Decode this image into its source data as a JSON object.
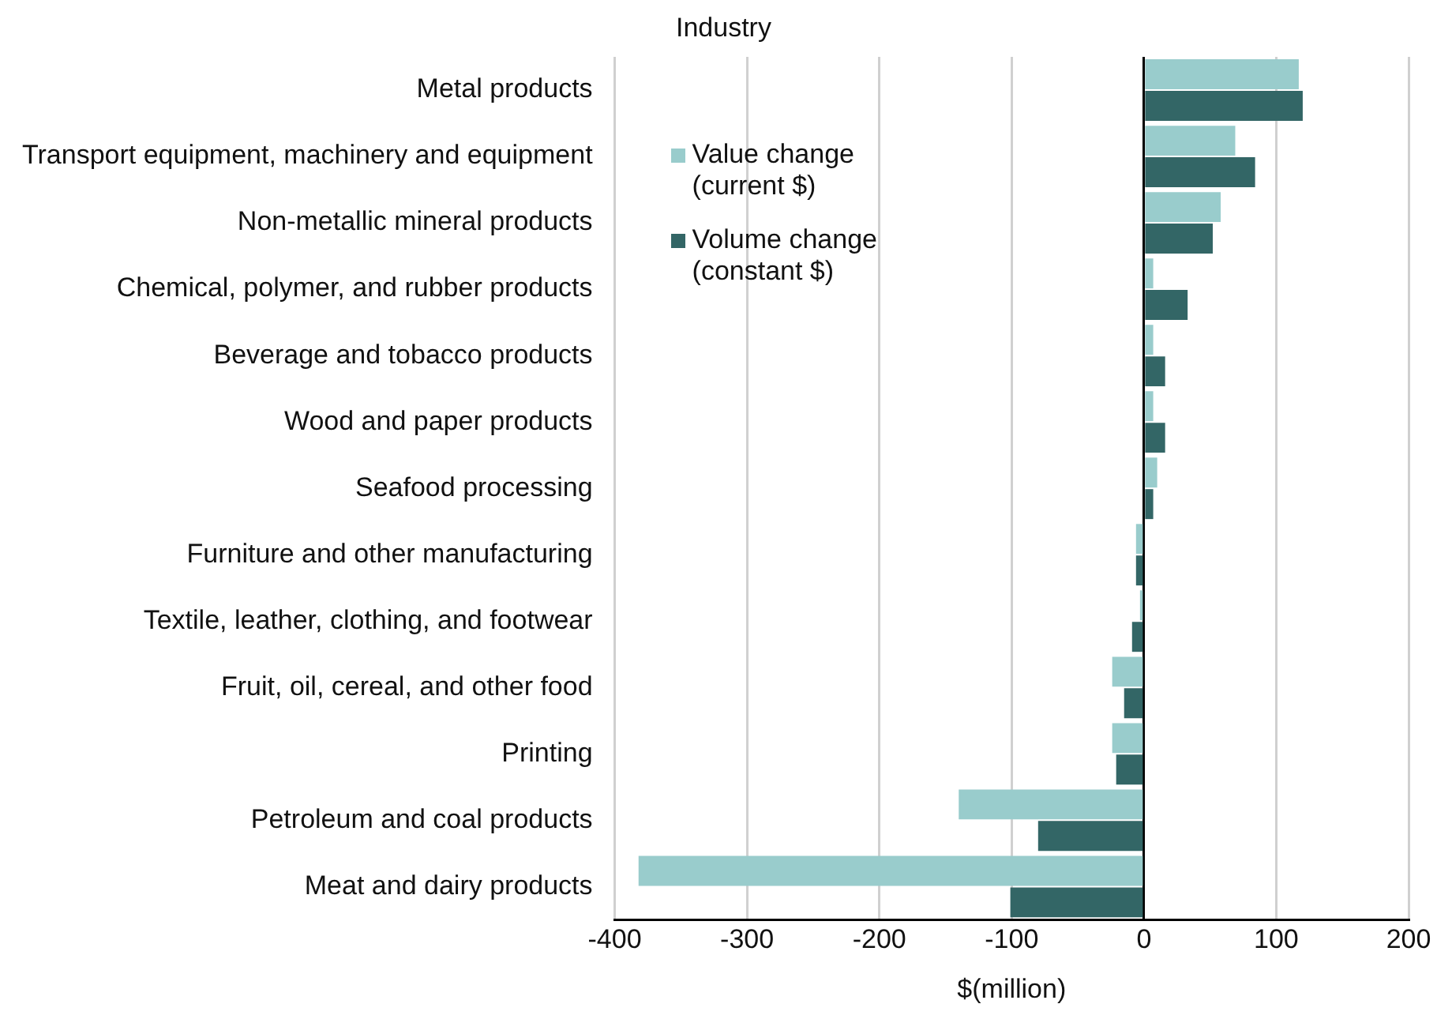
{
  "chart_data": {
    "type": "bar",
    "orientation": "horizontal",
    "ylabel": "Industry",
    "xlabel": "$(million)",
    "categories": [
      "Metal products",
      "Transport equipment, machinery and equipment",
      "Non-metallic mineral products",
      "Chemical, polymer, and rubber products",
      "Beverage and tobacco products",
      "Wood and paper products",
      "Seafood processing",
      "Furniture and other manufacturing",
      "Textile, leather, clothing, and footwear",
      "Fruit, oil, cereal, and other food",
      "Printing",
      "Petroleum and coal products",
      "Meat and dairy products"
    ],
    "series": [
      {
        "name": "Value change (current $)",
        "color": "#99cccc",
        "values": [
          117,
          69,
          58,
          7,
          7,
          7,
          10,
          -6,
          -3,
          -24,
          -24,
          -140,
          -382
        ]
      },
      {
        "name": "Volume change (constant $)",
        "color": "#336666",
        "values": [
          120,
          84,
          52,
          33,
          16,
          16,
          7,
          -6,
          -9,
          -15,
          -21,
          -80,
          -101
        ]
      }
    ],
    "xlim": [
      -400,
      200
    ],
    "xticks": [
      -400,
      -300,
      -200,
      -100,
      0,
      100,
      200
    ],
    "grid": "x",
    "legend": "top left"
  }
}
